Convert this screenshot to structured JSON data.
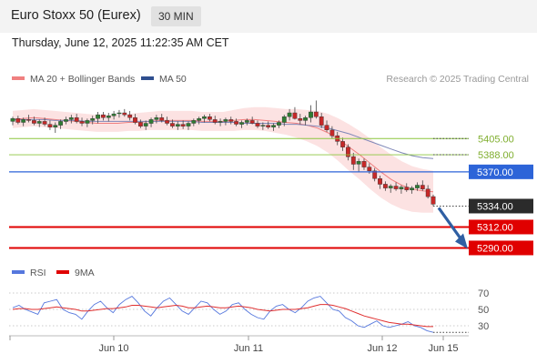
{
  "header": {
    "title": "Euro Stoxx 50 (Eurex)",
    "timeframe": "30 MIN",
    "datetime": "Thursday, June 12, 2025 11:22:35 AM CET"
  },
  "legend": {
    "ma20": "MA 20 + Bollinger Bands",
    "ma50": "MA 50",
    "credit": "Research © 2025 Trading Central",
    "rsi": "RSI",
    "rsi_ma": "9MA"
  },
  "colors": {
    "candle_up": "#2e7d32",
    "candle_down": "#c62828",
    "bollinger_fill": "#fbd2d2",
    "ma20": "#f08080",
    "ma50": "#8088b8",
    "support": "#e00000",
    "resistance_green": "#8cc63f",
    "pivot_blue": "#2d64d8",
    "last_price": "#2b2b2b",
    "arrow": "#2f5fa3",
    "rsi_line": "#5577dd",
    "rsi_ma_line": "#e03030"
  },
  "chart_data": [
    {
      "type": "candlestick",
      "ylim": [
        5278,
        5455
      ],
      "x_ticks": [
        "Jun 10",
        "Jun 11",
        "Jun 12",
        "Jun 15"
      ],
      "levels": [
        {
          "value": 5405.0,
          "label": "5405.00",
          "kind": "resistance"
        },
        {
          "value": 5388.0,
          "label": "5388.00",
          "kind": "resistance"
        },
        {
          "value": 5370.0,
          "label": "5370.00",
          "kind": "pivot"
        },
        {
          "value": 5312.0,
          "label": "5312.00",
          "kind": "support"
        },
        {
          "value": 5290.0,
          "label": "5290.00",
          "kind": "support"
        }
      ],
      "last_price": {
        "value": 5334.0,
        "label": "5334.00"
      },
      "series": [
        {
          "name": "MA 20",
          "values": [
            5425,
            5426,
            5427,
            5426,
            5425,
            5424,
            5423,
            5422,
            5421,
            5421,
            5421,
            5422,
            5422,
            5423,
            5424,
            5424,
            5424,
            5424,
            5423,
            5423,
            5423,
            5424,
            5425,
            5425,
            5424,
            5423,
            5422,
            5421,
            5419,
            5416,
            5411,
            5404,
            5396,
            5388,
            5379,
            5370,
            5362,
            5356,
            5352,
            5350,
            5349
          ]
        },
        {
          "name": "MA 50",
          "values": [
            5425,
            5425,
            5425,
            5425,
            5424,
            5424,
            5424,
            5423,
            5423,
            5423,
            5423,
            5423,
            5423,
            5423,
            5423,
            5423,
            5423,
            5423,
            5422,
            5422,
            5422,
            5422,
            5421,
            5421,
            5421,
            5421,
            5420,
            5420,
            5419,
            5418,
            5416,
            5413,
            5410,
            5406,
            5402,
            5398,
            5394,
            5390,
            5387,
            5385,
            5384
          ]
        },
        {
          "name": "Bollinger Upper",
          "values": [
            5434,
            5435,
            5436,
            5435,
            5434,
            5433,
            5432,
            5431,
            5430,
            5430,
            5430,
            5431,
            5432,
            5433,
            5434,
            5434,
            5434,
            5434,
            5433,
            5433,
            5433,
            5435,
            5437,
            5438,
            5438,
            5437,
            5436,
            5436,
            5435,
            5434,
            5431,
            5426,
            5420,
            5413,
            5405,
            5396,
            5388,
            5381,
            5376,
            5373,
            5371
          ]
        },
        {
          "name": "Bollinger Lower",
          "values": [
            5416,
            5417,
            5418,
            5417,
            5416,
            5415,
            5414,
            5413,
            5412,
            5412,
            5412,
            5413,
            5413,
            5414,
            5414,
            5414,
            5414,
            5414,
            5413,
            5413,
            5413,
            5413,
            5414,
            5414,
            5413,
            5411,
            5409,
            5406,
            5402,
            5397,
            5390,
            5381,
            5371,
            5362,
            5352,
            5343,
            5336,
            5331,
            5328,
            5327,
            5327
          ]
        }
      ],
      "candles": [
        [
          5423,
          5428,
          5419,
          5426
        ],
        [
          5426,
          5429,
          5420,
          5422
        ],
        [
          5422,
          5427,
          5418,
          5425
        ],
        [
          5425,
          5430,
          5422,
          5424
        ],
        [
          5424,
          5428,
          5419,
          5421
        ],
        [
          5421,
          5425,
          5417,
          5423
        ],
        [
          5423,
          5427,
          5418,
          5420
        ],
        [
          5420,
          5424,
          5414,
          5417
        ],
        [
          5417,
          5422,
          5411,
          5419
        ],
        [
          5419,
          5425,
          5415,
          5423
        ],
        [
          5423,
          5428,
          5420,
          5425
        ],
        [
          5425,
          5430,
          5421,
          5427
        ],
        [
          5427,
          5431,
          5421,
          5423
        ],
        [
          5423,
          5427,
          5418,
          5421
        ],
        [
          5421,
          5426,
          5417,
          5424
        ],
        [
          5424,
          5429,
          5420,
          5426
        ],
        [
          5426,
          5433,
          5421,
          5430
        ],
        [
          5430,
          5433,
          5424,
          5427
        ],
        [
          5427,
          5432,
          5423,
          5429
        ],
        [
          5429,
          5434,
          5425,
          5431
        ],
        [
          5431,
          5435,
          5427,
          5432
        ],
        [
          5432,
          5436,
          5428,
          5430
        ],
        [
          5430,
          5434,
          5424,
          5427
        ],
        [
          5427,
          5431,
          5420,
          5422
        ],
        [
          5422,
          5425,
          5416,
          5418
        ],
        [
          5418,
          5424,
          5414,
          5421
        ],
        [
          5421,
          5427,
          5417,
          5425
        ],
        [
          5425,
          5430,
          5421,
          5427
        ],
        [
          5427,
          5431,
          5422,
          5424
        ],
        [
          5424,
          5428,
          5419,
          5421
        ],
        [
          5421,
          5425,
          5416,
          5418
        ],
        [
          5418,
          5423,
          5414,
          5420
        ],
        [
          5420,
          5424,
          5415,
          5418
        ],
        [
          5418,
          5423,
          5414,
          5421
        ],
        [
          5421,
          5426,
          5418,
          5424
        ],
        [
          5424,
          5428,
          5420,
          5426
        ],
        [
          5426,
          5430,
          5422,
          5428
        ],
        [
          5428,
          5431,
          5423,
          5425
        ],
        [
          5425,
          5429,
          5420,
          5422
        ],
        [
          5422,
          5426,
          5418,
          5423
        ],
        [
          5423,
          5427,
          5419,
          5425
        ],
        [
          5425,
          5428,
          5420,
          5423
        ],
        [
          5423,
          5426,
          5418,
          5420
        ],
        [
          5420,
          5424,
          5416,
          5422
        ],
        [
          5422,
          5426,
          5419,
          5424
        ],
        [
          5424,
          5428,
          5420,
          5421
        ],
        [
          5421,
          5424,
          5416,
          5418
        ],
        [
          5418,
          5422,
          5414,
          5419
        ],
        [
          5419,
          5423,
          5415,
          5417
        ],
        [
          5417,
          5421,
          5413,
          5419
        ],
        [
          5419,
          5424,
          5416,
          5422
        ],
        [
          5422,
          5430,
          5418,
          5428
        ],
        [
          5428,
          5436,
          5424,
          5432
        ],
        [
          5432,
          5438,
          5425,
          5426
        ],
        [
          5426,
          5431,
          5420,
          5424
        ],
        [
          5424,
          5429,
          5419,
          5427
        ],
        [
          5427,
          5440,
          5422,
          5433
        ],
        [
          5433,
          5445,
          5426,
          5428
        ],
        [
          5428,
          5432,
          5416,
          5419
        ],
        [
          5419,
          5424,
          5412,
          5414
        ],
        [
          5414,
          5418,
          5405,
          5408
        ],
        [
          5408,
          5412,
          5398,
          5402
        ],
        [
          5402,
          5406,
          5392,
          5396
        ],
        [
          5396,
          5399,
          5382,
          5386
        ],
        [
          5386,
          5390,
          5372,
          5378
        ],
        [
          5378,
          5384,
          5370,
          5381
        ],
        [
          5381,
          5384,
          5372,
          5375
        ],
        [
          5375,
          5379,
          5368,
          5371
        ],
        [
          5371,
          5374,
          5360,
          5363
        ],
        [
          5363,
          5366,
          5352,
          5357
        ],
        [
          5357,
          5360,
          5350,
          5353
        ],
        [
          5353,
          5357,
          5348,
          5355
        ],
        [
          5355,
          5359,
          5350,
          5352
        ],
        [
          5352,
          5356,
          5347,
          5354
        ],
        [
          5354,
          5358,
          5349,
          5351
        ],
        [
          5351,
          5355,
          5347,
          5353
        ],
        [
          5353,
          5359,
          5350,
          5356
        ],
        [
          5356,
          5361,
          5350,
          5352
        ],
        [
          5352,
          5356,
          5342,
          5344
        ],
        [
          5344,
          5346,
          5334,
          5336
        ]
      ]
    },
    {
      "type": "line",
      "name": "RSI",
      "ylim": [
        20,
        80
      ],
      "y_ticks": [
        70,
        50,
        30
      ],
      "series": [
        {
          "name": "RSI",
          "values": [
            52,
            55,
            50,
            47,
            44,
            58,
            60,
            62,
            50,
            46,
            44,
            38,
            48,
            56,
            60,
            52,
            46,
            56,
            62,
            66,
            58,
            48,
            42,
            52,
            60,
            64,
            56,
            48,
            44,
            52,
            60,
            58,
            50,
            44,
            48,
            56,
            58,
            50,
            44,
            40,
            38,
            48,
            54,
            56,
            50,
            46,
            52,
            60,
            64,
            66,
            58,
            50,
            48,
            40,
            36,
            30,
            28,
            32,
            36,
            30,
            28,
            30,
            32,
            35,
            30,
            28,
            24,
            22
          ]
        },
        {
          "name": "9MA",
          "values": [
            50,
            51,
            51,
            50,
            50,
            51,
            52,
            53,
            52,
            51,
            50,
            48,
            48,
            49,
            50,
            51,
            51,
            52,
            53,
            55,
            55,
            54,
            53,
            52,
            53,
            54,
            55,
            54,
            52,
            52,
            53,
            54,
            53,
            52,
            52,
            53,
            54,
            53,
            52,
            50,
            49,
            48,
            49,
            50,
            50,
            50,
            51,
            52,
            54,
            56,
            56,
            55,
            53,
            51,
            48,
            45,
            42,
            40,
            38,
            36,
            34,
            33,
            32,
            32,
            31,
            30,
            29,
            29
          ]
        }
      ]
    }
  ]
}
